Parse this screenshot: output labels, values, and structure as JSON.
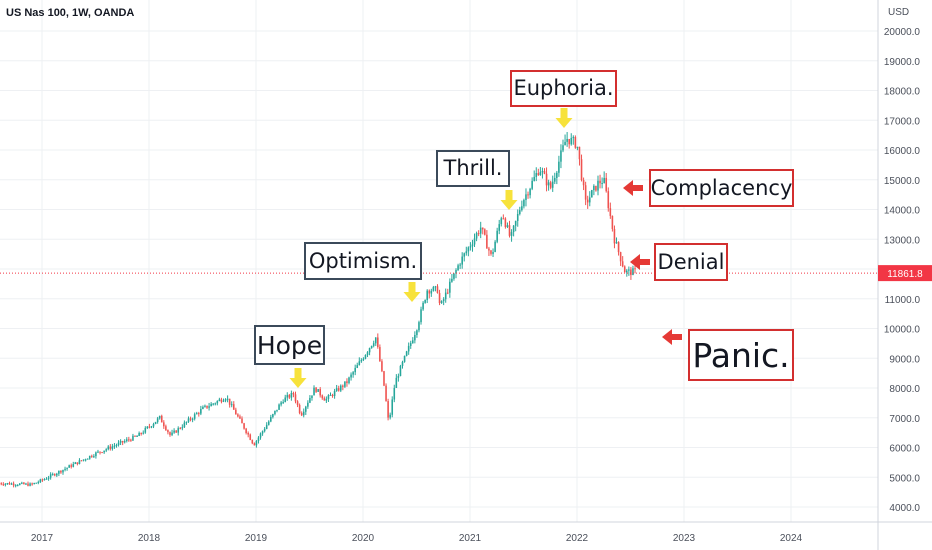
{
  "symbol_label": "US Nas 100, 1W, OANDA",
  "currency_label": "USD",
  "last_price_label": "11861.8",
  "annotations": {
    "hope": "Hope",
    "optimism": "Optimism.",
    "thrill": "Thrill.",
    "euphoria": "Euphoria.",
    "complacency": "Complacency",
    "denial": "Denial",
    "panic": "Panic."
  },
  "colors": {
    "up": "#26a69a",
    "down": "#ef5350",
    "yellow_arrow": "#f7e23b",
    "red_arrow": "#e53935",
    "grid": "#eef0f3",
    "axis_text": "#4a4f5a",
    "price_tag": "#f23645"
  },
  "chart_data": {
    "type": "candlestick",
    "title": "US Nas 100, 1W, OANDA",
    "ylabel": "USD",
    "yscale": "linear",
    "ylim": [
      3600,
      20700
    ],
    "xlim": [
      2016.6,
      2024.9
    ],
    "grid": true,
    "y_ticks": [
      "20000.0",
      "19000.0",
      "18000.0",
      "17000.0",
      "16000.0",
      "15000.0",
      "14000.0",
      "13000.0",
      "12000.0",
      "11000.0",
      "10000.0",
      "9000.0",
      "8000.0",
      "7000.0",
      "6000.0",
      "5000.0",
      "4000.0"
    ],
    "x_ticks": [
      {
        "label": "2017",
        "x": 2017
      },
      {
        "label": "2018",
        "x": 2018
      },
      {
        "label": "2019",
        "x": 2019
      },
      {
        "label": "2020",
        "x": 2020
      },
      {
        "label": "2021",
        "x": 2021
      },
      {
        "label": "2022",
        "x": 2022
      },
      {
        "label": "2023",
        "x": 2023
      },
      {
        "label": "2024",
        "x": 2024
      }
    ],
    "last_price": 11861.8,
    "price_path": [
      [
        2016.6,
        4800
      ],
      [
        2016.9,
        4750
      ],
      [
        2017.0,
        4900
      ],
      [
        2017.5,
        5800
      ],
      [
        2017.9,
        6400
      ],
      [
        2018.1,
        7000
      ],
      [
        2018.2,
        6400
      ],
      [
        2018.5,
        7300
      ],
      [
        2018.72,
        7700
      ],
      [
        2018.9,
        6600
      ],
      [
        2018.98,
        6100
      ],
      [
        2019.25,
        7600
      ],
      [
        2019.35,
        7800
      ],
      [
        2019.42,
        7100
      ],
      [
        2019.55,
        8000
      ],
      [
        2019.65,
        7600
      ],
      [
        2019.85,
        8200
      ],
      [
        2020.12,
        9700
      ],
      [
        2020.2,
        8000
      ],
      [
        2020.24,
        6800
      ],
      [
        2020.3,
        8200
      ],
      [
        2020.5,
        10000
      ],
      [
        2020.6,
        11300
      ],
      [
        2020.7,
        11300
      ],
      [
        2020.72,
        10700
      ],
      [
        2020.9,
        12200
      ],
      [
        2021.1,
        13400
      ],
      [
        2021.2,
        12400
      ],
      [
        2021.3,
        13900
      ],
      [
        2021.38,
        13000
      ],
      [
        2021.48,
        14200
      ],
      [
        2021.65,
        15400
      ],
      [
        2021.75,
        14700
      ],
      [
        2021.9,
        16400
      ],
      [
        2022.0,
        16200
      ],
      [
        2022.08,
        14200
      ],
      [
        2022.2,
        14900
      ],
      [
        2022.25,
        15000
      ],
      [
        2022.35,
        13000
      ],
      [
        2022.45,
        11900
      ],
      [
        2022.55,
        11900
      ]
    ]
  }
}
